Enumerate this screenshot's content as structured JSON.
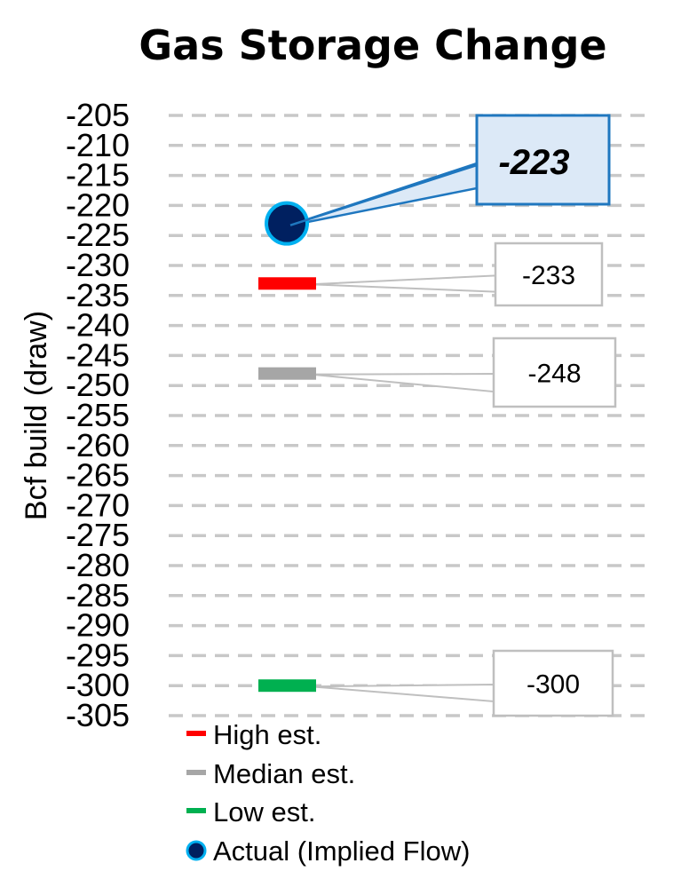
{
  "chart_data": {
    "type": "scatter",
    "title": "Gas Storage Change",
    "ylabel": "Bcf build (draw)",
    "ylim": [
      -305,
      -205
    ],
    "ytick_step": 5,
    "grid": true,
    "legend_placement": "bottom",
    "series": [
      {
        "name": "High est.",
        "marker": "bar",
        "color": "#ff0000",
        "value": -233,
        "label": "-233"
      },
      {
        "name": "Median est.",
        "marker": "bar",
        "color": "#a6a6a6",
        "value": -248,
        "label": "-248"
      },
      {
        "name": "Low est.",
        "marker": "bar",
        "color": "#00b050",
        "value": -300,
        "label": "-300"
      },
      {
        "name": "Actual (Implied Flow)",
        "marker": "circle",
        "color": "#002060",
        "edge_color": "#00b0f0",
        "value": -223,
        "label": "-223"
      }
    ]
  }
}
